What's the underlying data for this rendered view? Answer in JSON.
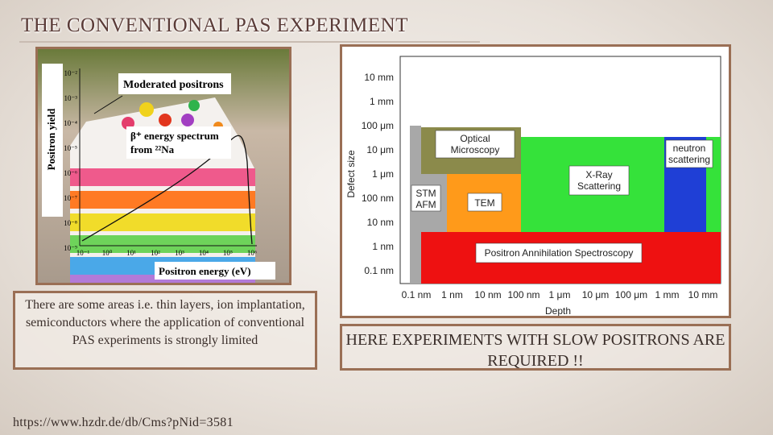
{
  "slide": {
    "title": "THE CONVENTIONAL PAS EXPERIMENT",
    "caption": "There are some areas i.e. thin layers, ion implantation, semiconductors where the application of conventional PAS experiments is strongly limited",
    "note": "HERE EXPERIMENTS WITH SLOW POSITRONS ARE REQUIRED !!",
    "source": "https://www.hzdr.de/db/Cms?pNid=3581"
  },
  "left_figure": {
    "ylabel": "Positron yield",
    "xlabel": "Positron energy (eV)",
    "yticks": [
      "10⁻²",
      "10⁻³",
      "10⁻⁴",
      "10⁻⁵",
      "10⁻⁶",
      "10⁻⁷",
      "10⁻⁸",
      "10⁻⁹"
    ],
    "xticks": [
      "10⁻¹",
      "10⁰",
      "10¹",
      "10²",
      "10³",
      "10⁴",
      "10⁵",
      "10⁶"
    ],
    "label_moderated": "Moderated positrons",
    "label_beta_1": "β⁺ energy spectrum",
    "label_beta_2": "from ²²Na"
  },
  "right_figure": {
    "ylabel": "Defect size",
    "xlabel": "Depth",
    "yticks": [
      "10 mm",
      "1 mm",
      "100 μm",
      "10 μm",
      "1 μm",
      "100 nm",
      "10 nm",
      "1 nm",
      "0.1 nm"
    ],
    "xticks": [
      "0.1 nm",
      "1 nm",
      "10 nm",
      "100 nm",
      "1 μm",
      "10 μm",
      "100 μm",
      "1 mm",
      "10 mm"
    ],
    "regions": {
      "optical_1": "Optical",
      "optical_2": "Microscopy",
      "neutron_1": "neutron",
      "neutron_2": "scattering",
      "xray_1": "X-Ray",
      "xray_2": "Scattering",
      "stm_1": "STM",
      "stm_2": "AFM",
      "tem": "TEM",
      "pas": "Positron Annihilation Spectroscopy"
    },
    "colors": {
      "optical": "#8b8a4b",
      "neutron": "#1f3fd6",
      "xray": "#35e23a",
      "stm": "#a8a8a8",
      "tem": "#ff9a1a",
      "pas": "#ee1111"
    }
  }
}
